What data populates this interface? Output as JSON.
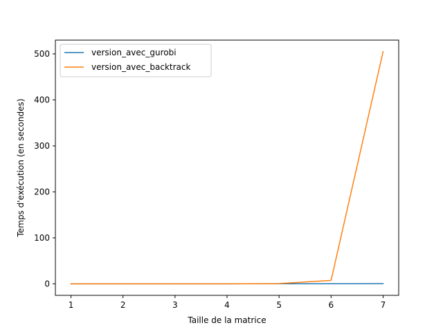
{
  "chart_data": {
    "type": "line",
    "title": "",
    "xlabel": "Taille de la matrice",
    "ylabel": "Temps d'exécution (en secondes)",
    "x": [
      1,
      2,
      3,
      4,
      5,
      6,
      7
    ],
    "xticks": [
      "1",
      "2",
      "3",
      "4",
      "5",
      "6",
      "7"
    ],
    "yticks": [
      "0",
      "100",
      "200",
      "300",
      "400",
      "500"
    ],
    "xlim": [
      0.7,
      7.3
    ],
    "ylim": [
      -25,
      530
    ],
    "grid": false,
    "legend_position": "top-left",
    "series": [
      {
        "name": "version_avec_gurobi",
        "color": "#1f77b4",
        "values": [
          0.02,
          0.03,
          0.05,
          0.08,
          0.12,
          0.2,
          0.3
        ]
      },
      {
        "name": "version_avec_backtrack",
        "color": "#ff7f0e",
        "values": [
          0.0,
          0.0,
          0.0,
          0.05,
          0.5,
          7.5,
          505
        ]
      }
    ]
  }
}
